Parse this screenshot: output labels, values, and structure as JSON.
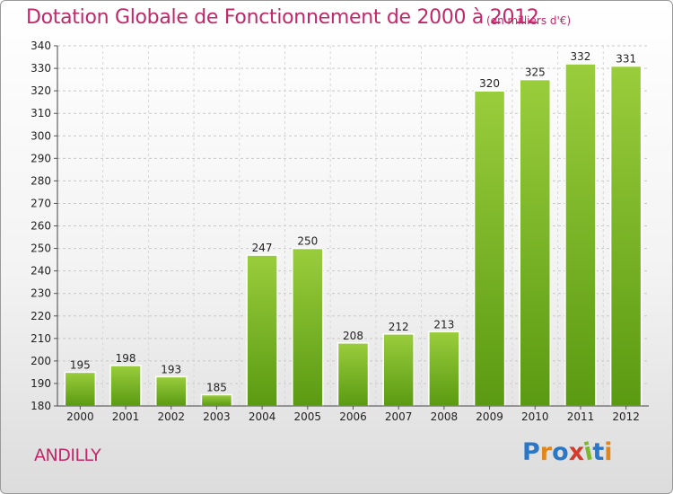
{
  "header": {
    "title": "Dotation Globale de Fonctionnement de 2000 à 2012",
    "subtitle": "(en milliers d'€)"
  },
  "footer": {
    "commune": "ANDILLY",
    "logo": "Proxiti"
  },
  "colors": {
    "title": "#c0286a",
    "bar_top": "#9acd3c",
    "bar_bottom": "#5a9a12",
    "logo_letters": [
      "#2a77c8",
      "#e0861c",
      "#2a77c8",
      "#d43b2a",
      "#7cb82f",
      "#2a77c8",
      "#e0861c"
    ]
  },
  "chart_data": {
    "type": "bar",
    "title": "Dotation Globale de Fonctionnement de 2000 à 2012",
    "subtitle": "(en milliers d'€)",
    "categories": [
      "2000",
      "2001",
      "2002",
      "2003",
      "2004",
      "2005",
      "2006",
      "2007",
      "2008",
      "2009",
      "2010",
      "2011",
      "2012"
    ],
    "values": [
      195,
      198,
      193,
      185,
      247,
      250,
      208,
      212,
      213,
      320,
      325,
      332,
      331
    ],
    "ylim": [
      180,
      340
    ],
    "yticks": [
      180,
      190,
      200,
      210,
      220,
      230,
      240,
      250,
      260,
      270,
      280,
      290,
      300,
      310,
      320,
      330,
      340
    ],
    "grid": "horizontal dashed",
    "legend": "none"
  }
}
